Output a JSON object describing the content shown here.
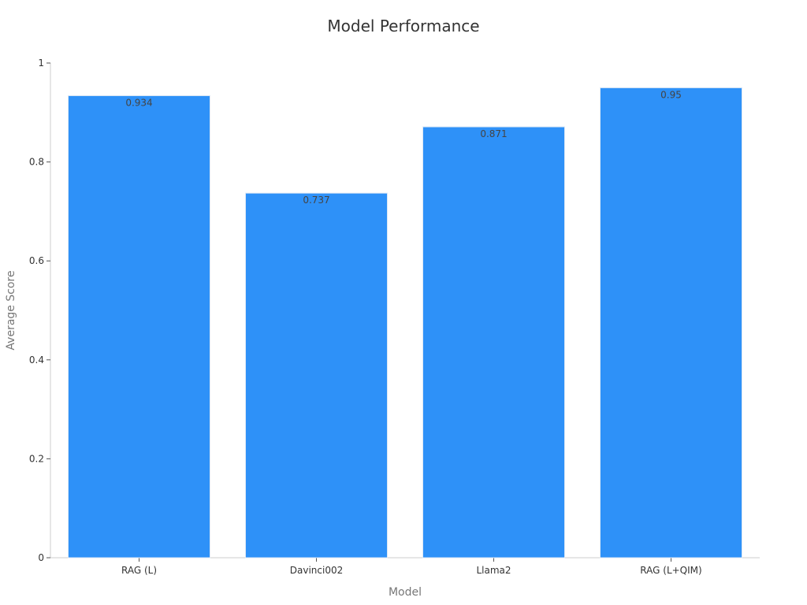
{
  "chart_data": {
    "type": "bar",
    "title": "Model Performance",
    "xlabel": "Model",
    "ylabel": "Average Score",
    "categories": [
      "RAG (L)",
      "Davinci002",
      "Llama2",
      "RAG (L+QIM)"
    ],
    "values": [
      0.934,
      0.737,
      0.871,
      0.95
    ],
    "data_labels": [
      "0.934",
      "0.737",
      "0.871",
      "0.95"
    ],
    "ylim": [
      0,
      1
    ],
    "yticks": [
      0,
      0.2,
      0.4,
      0.6,
      0.8,
      1
    ],
    "ytick_labels": [
      "0",
      "0.2",
      "0.4",
      "0.6",
      "0.8",
      "1"
    ],
    "grid": false,
    "legend": "none",
    "colors": {
      "bar": "#2e91f8",
      "bar_edge": "#dde8f5",
      "axis": "#cccccc",
      "text": "#333333",
      "axis_label": "#777777"
    }
  }
}
